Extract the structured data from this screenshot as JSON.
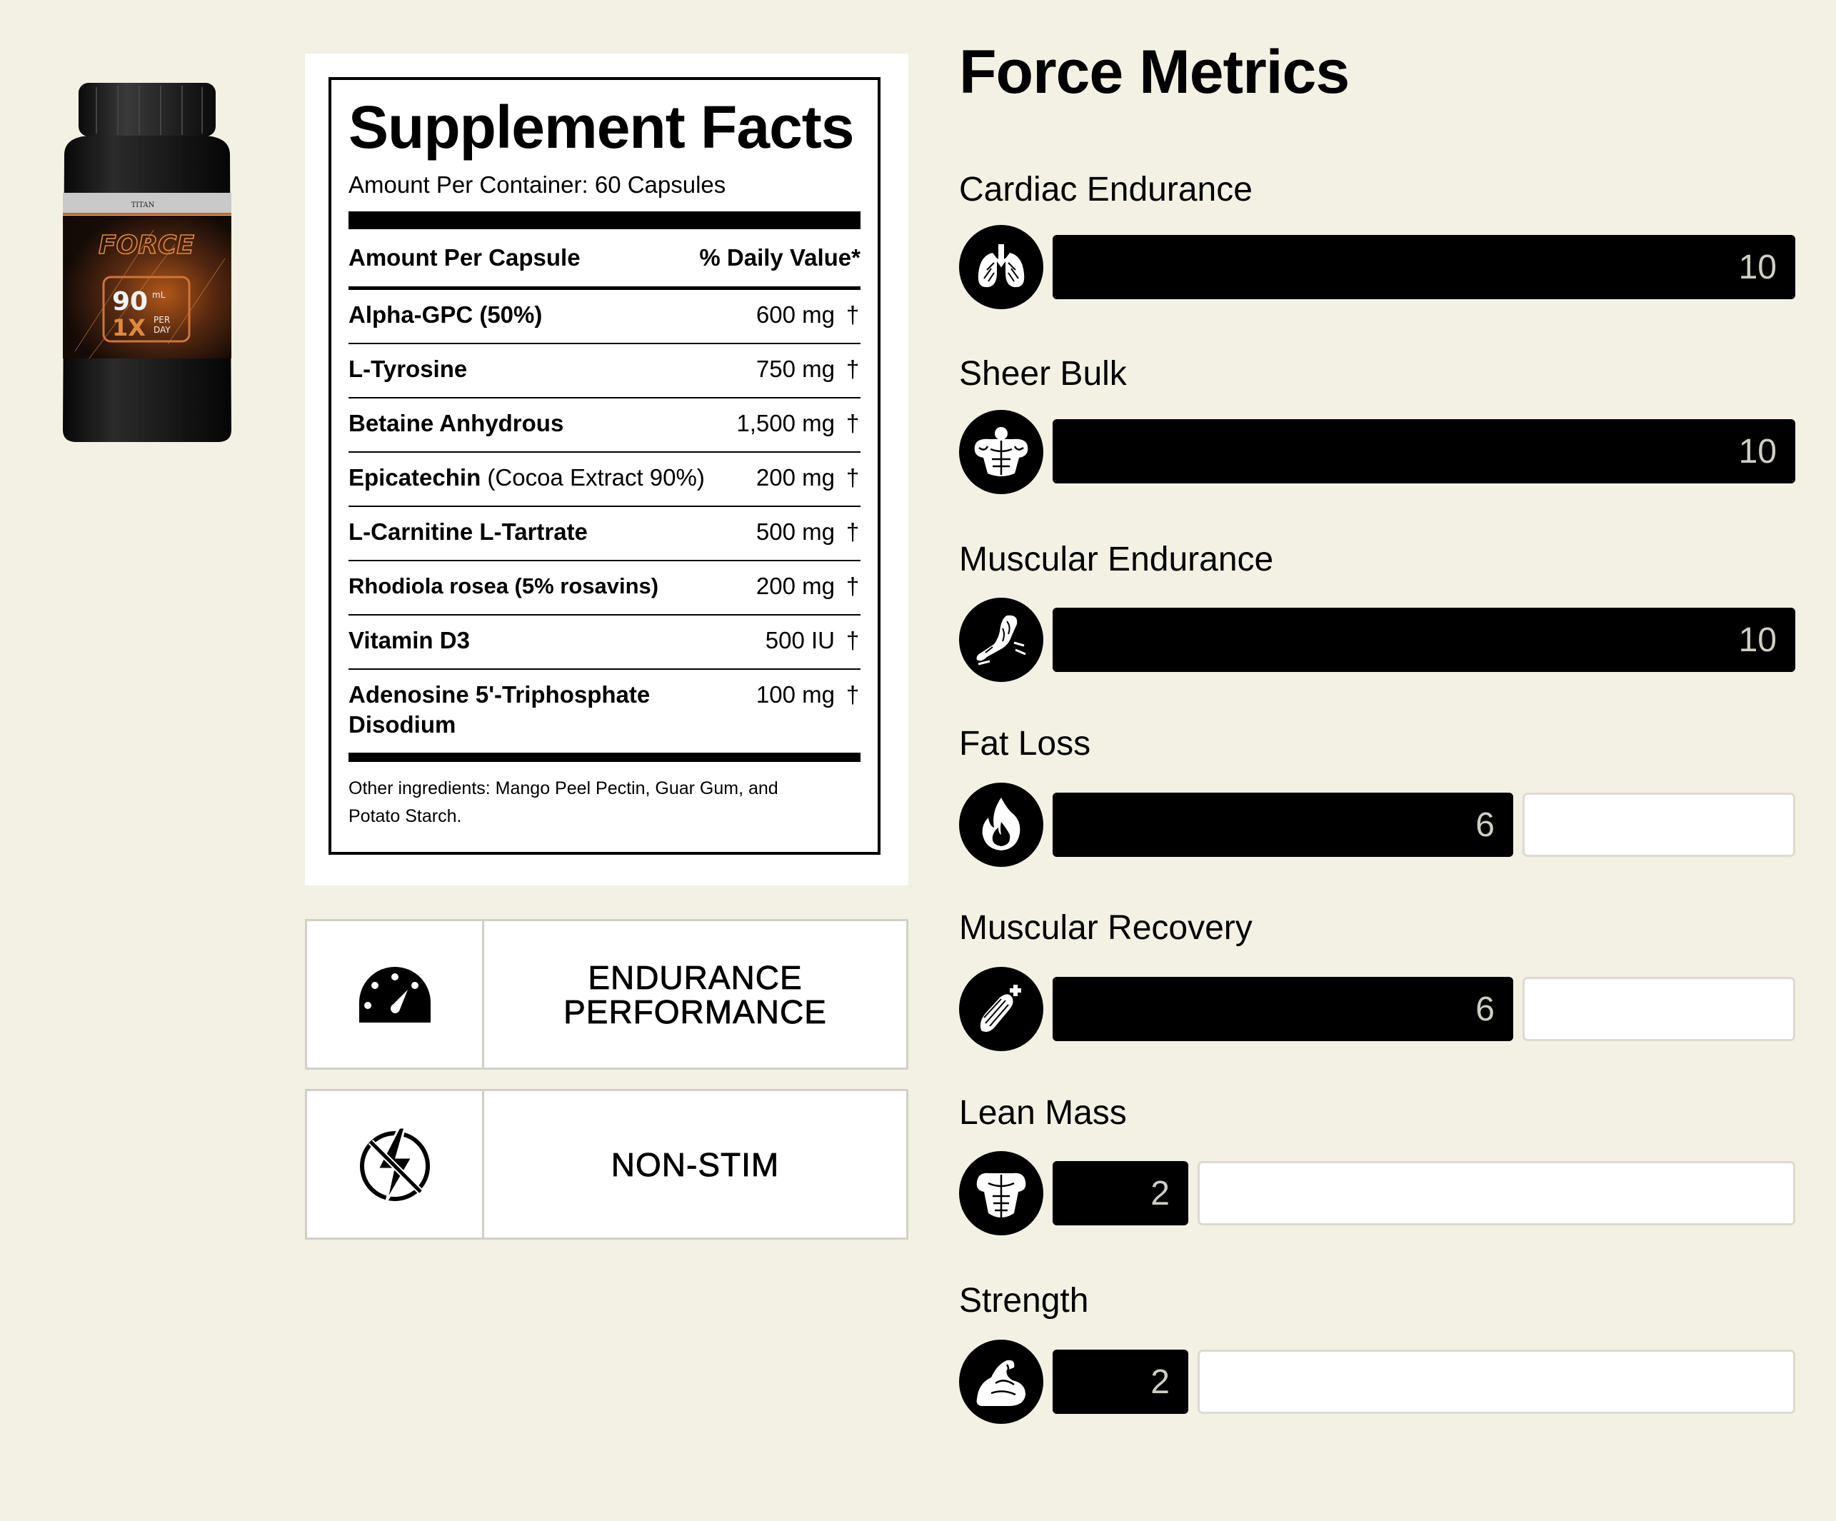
{
  "product": {
    "brand": "TITAN",
    "name": "FORCE",
    "volume": "90",
    "volume_unit": "mL",
    "dose": "1X",
    "dose_unit": "PER DAY"
  },
  "facts": {
    "title": "Supplement Facts",
    "amount_per_container": "Amount Per Container: 60 Capsules",
    "col_left": "Amount Per Capsule",
    "col_right": "% Daily Value*",
    "ingredients": [
      {
        "name": "Alpha-GPC (50%)",
        "note": "",
        "amount": "600 mg",
        "dv": "†"
      },
      {
        "name": "L-Tyrosine",
        "note": "",
        "amount": "750 mg",
        "dv": "†"
      },
      {
        "name": "Betaine Anhydrous",
        "note": "",
        "amount": "1,500 mg",
        "dv": "†"
      },
      {
        "name": "Epicatechin",
        "note": " (Cocoa Extract 90%)",
        "amount": "200 mg",
        "dv": "†"
      },
      {
        "name": "L-Carnitine L-Tartrate",
        "note": "",
        "amount": "500 mg",
        "dv": "†"
      },
      {
        "name": "Rhodiola rosea (5% rosavins)",
        "note": "",
        "amount": "200 mg",
        "dv": "†"
      },
      {
        "name": "Vitamin D3",
        "note": "",
        "amount": "500 IU",
        "dv": "†"
      },
      {
        "name": "Adenosine 5'-Triphosphate Disodium",
        "note": "",
        "amount": "100 mg",
        "dv": "†"
      }
    ],
    "other_ingredients": "Other ingredients: Mango Peel Pectin, Guar Gum, and Potato Starch."
  },
  "badges": [
    {
      "icon": "speedometer-icon",
      "label": "ENDURANCE PERFORMANCE"
    },
    {
      "icon": "no-lightning-icon",
      "label": "NON-STIM"
    }
  ],
  "metrics": {
    "title": "Force Metrics",
    "max": 10,
    "items": [
      {
        "label": "Cardiac Endurance",
        "value": 10,
        "display": "10",
        "icon": "lungs-icon"
      },
      {
        "label": "Sheer Bulk",
        "value": 10,
        "display": "10",
        "icon": "muscular-torso-icon"
      },
      {
        "label": "Muscular Endurance",
        "value": 10,
        "display": "10",
        "icon": "running-leg-icon"
      },
      {
        "label": "Fat Loss",
        "value": 6,
        "display": "6",
        "icon": "flame-icon"
      },
      {
        "label": "Muscular Recovery",
        "value": 6,
        "display": "6",
        "icon": "muscle-recovery-icon"
      },
      {
        "label": "Lean Mass",
        "value": 2,
        "display": "2",
        "icon": "lean-torso-icon"
      },
      {
        "label": "Strength",
        "value": 2,
        "display": "2",
        "icon": "flexed-arm-icon"
      }
    ]
  }
}
